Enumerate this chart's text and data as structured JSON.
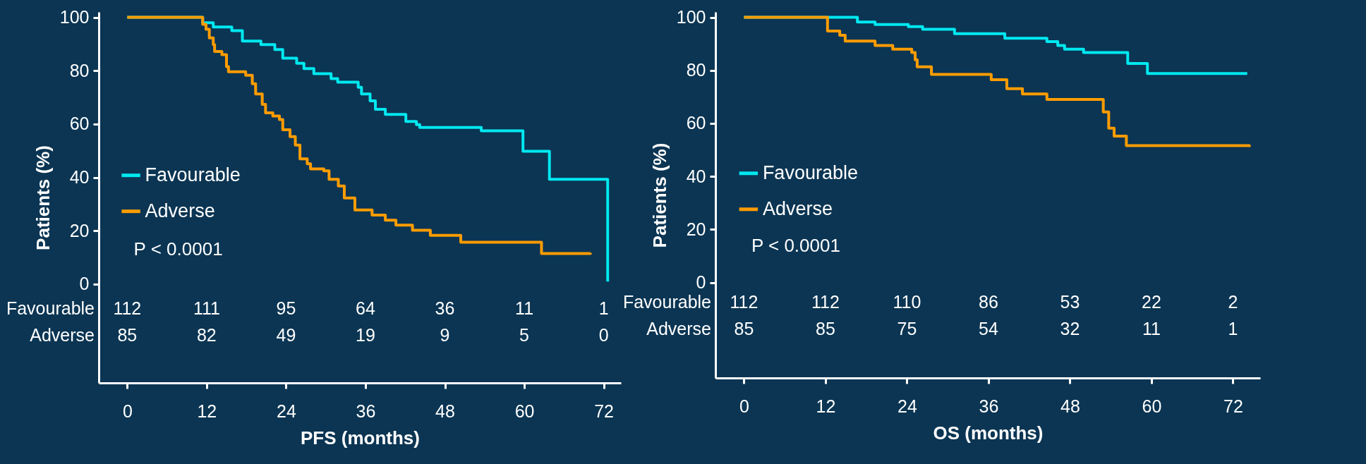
{
  "chart_data": [
    {
      "type": "step",
      "xlabel": "PFS (months)",
      "ylabel": "Patients (%)",
      "xlim": [
        -4.3,
        74.6
      ],
      "ylim": [
        -37,
        102
      ],
      "xticks": [
        0,
        12,
        24,
        36,
        48,
        60,
        72
      ],
      "yticks": [
        0,
        20,
        40,
        60,
        80,
        100
      ],
      "legend": "left",
      "grid": false,
      "series": [
        {
          "name": "Favourable",
          "color": "#00e8f0",
          "x": [
            0,
            10.6,
            11.4,
            13,
            15.8,
            17.4,
            20.2,
            22.3,
            23.5,
            25.6,
            26.7,
            28.2,
            30.8,
            31.8,
            34.9,
            35.4,
            36.7,
            37.5,
            39,
            42.1,
            43.7,
            44.2,
            53.5,
            59.8,
            63.8,
            72.6,
            72.6
          ],
          "values": [
            100,
            100,
            98,
            96.4,
            95,
            91.1,
            89.8,
            87.9,
            84.7,
            82.8,
            80.8,
            78.9,
            77,
            75.7,
            73.8,
            71.3,
            68.7,
            65.5,
            63.6,
            61,
            59.8,
            58.7,
            57.5,
            49.8,
            39.3,
            39.3,
            1
          ]
        },
        {
          "name": "Adverse",
          "color": "#ff9c00",
          "x": [
            0,
            10.6,
            11.4,
            11.9,
            12.4,
            13,
            13.2,
            14.3,
            15,
            15.3,
            17.9,
            18.9,
            19.4,
            20.4,
            20.9,
            22,
            23,
            23.5,
            24.6,
            25.4,
            26.1,
            27.2,
            27.7,
            29.7,
            30.5,
            31.9,
            32.8,
            34.4,
            37,
            39,
            40.6,
            43.1,
            45.8,
            50.4,
            62.6,
            70
          ],
          "values": [
            100,
            100,
            97.4,
            95.5,
            92.3,
            89.8,
            87.2,
            86,
            81.5,
            79.6,
            78.3,
            75.1,
            71.3,
            67.4,
            64.2,
            63,
            61.7,
            57.9,
            55.3,
            52.1,
            47,
            45.1,
            43.2,
            42.5,
            39.3,
            36.8,
            32.3,
            27.8,
            25.9,
            24,
            22.1,
            20.2,
            18.3,
            15.7,
            11.5,
            11.7
          ]
        }
      ],
      "annotations": [
        "P < 0.0001",
        "Favourable",
        "Adverse",
        "112",
        "111",
        "95",
        "64",
        "36",
        "11",
        "1",
        "85",
        "82",
        "49",
        "19",
        "9",
        "5",
        "0"
      ]
    },
    {
      "type": "step",
      "xlabel": "OS (months)",
      "ylabel": "Patients (%)",
      "xlim": [
        -4.2,
        76
      ],
      "ylim": [
        -36,
        102
      ],
      "xticks": [
        0,
        12,
        24,
        36,
        48,
        60,
        72
      ],
      "yticks": [
        0,
        20,
        40,
        60,
        80,
        100
      ],
      "legend": "left",
      "grid": false,
      "series": [
        {
          "name": "Favourable",
          "color": "#00e8f0",
          "x": [
            0,
            16.7,
            19.3,
            24.2,
            26.3,
            31,
            38.4,
            44.6,
            46.2,
            47.2,
            50,
            56.5,
            59.4,
            74.1
          ],
          "values": [
            100,
            98.2,
            97.3,
            96.5,
            95.5,
            93.8,
            92.1,
            90.8,
            89.4,
            88,
            86.7,
            82.6,
            78.8,
            78.8
          ]
        },
        {
          "name": "Adverse",
          "color": "#ff9c00",
          "x": [
            0,
            12.3,
            14.1,
            14.9,
            19.3,
            21.9,
            24.7,
            25.2,
            25.5,
            27.6,
            36.4,
            38.7,
            41,
            44.6,
            52.9,
            53.7,
            54.5,
            56.3,
            74.4
          ],
          "values": [
            100,
            94.8,
            93.2,
            91,
            89.4,
            88,
            86.7,
            84,
            81.3,
            78.5,
            76.5,
            73.1,
            71.1,
            69,
            64.3,
            58.2,
            55.2,
            51.6,
            51.1
          ]
        }
      ],
      "annotations": [
        "P < 0.0001",
        "Favourable",
        "Adverse",
        "112",
        "112",
        "110",
        "86",
        "53",
        "22",
        "2",
        "85",
        "85",
        "75",
        "54",
        "32",
        "11",
        "1"
      ]
    }
  ]
}
